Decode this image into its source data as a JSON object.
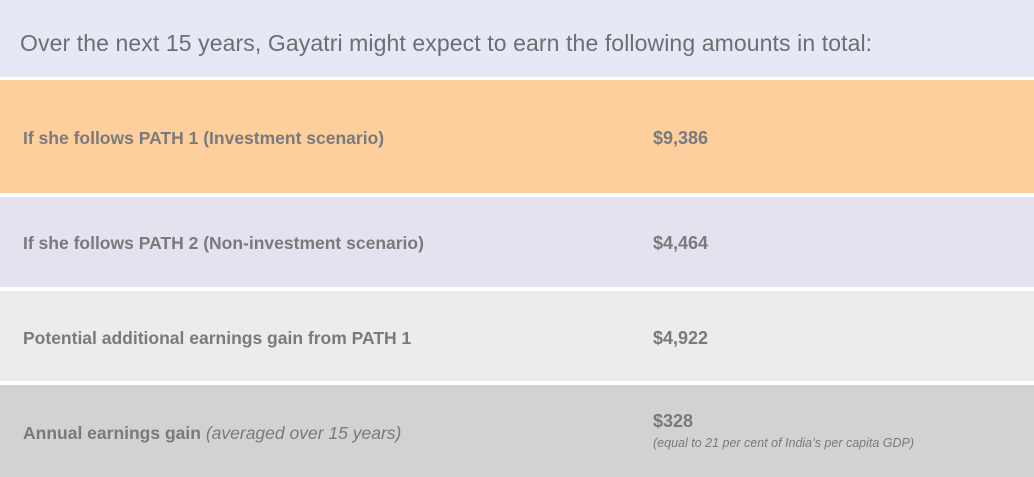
{
  "header": {
    "title": "Over the next 15 years, Gayatri might expect to earn the following amounts in total:"
  },
  "rows": [
    {
      "label": "If she follows PATH 1 (Investment scenario)",
      "value": "$9,386"
    },
    {
      "label": "If she follows PATH 2 (Non-investment scenario)",
      "value": "$4,464"
    },
    {
      "label": "Potential additional earnings gain from PATH 1",
      "value": "$4,922"
    },
    {
      "label": "Annual earnings gain",
      "label_suffix": "(averaged over 15 years)",
      "value": "$328",
      "note": "(equal to 21 per cent of India’s per capita GDP)"
    }
  ],
  "colors": {
    "header_bg": "#e4e9f5",
    "row_1_bg": "#fdcf9d",
    "row_2_bg": "#e6e1ee",
    "row_3_bg": "#ececec",
    "row_4_bg": "#d2d2d2",
    "text": "#7a7a7c"
  }
}
